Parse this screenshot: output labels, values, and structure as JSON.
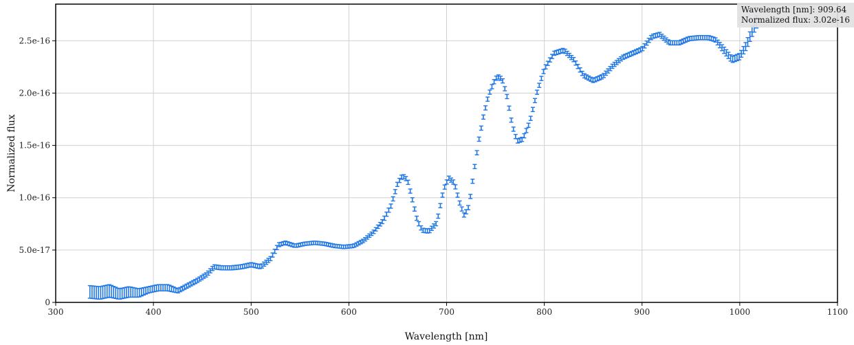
{
  "chart_data": {
    "type": "scatter",
    "xlabel": "Wavelength [nm]",
    "ylabel": "Normalized flux",
    "xlim": [
      300,
      1100
    ],
    "ylim": [
      0,
      2.85e-16
    ],
    "x_ticks": [
      300,
      400,
      500,
      600,
      700,
      800,
      900,
      1000,
      1100
    ],
    "x_tick_labels": [
      "300",
      "400",
      "500",
      "600",
      "700",
      "800",
      "900",
      "1000",
      "1100"
    ],
    "y_ticks": [
      0,
      5e-17,
      1e-16,
      1.5e-16,
      2e-16,
      2.5e-16
    ],
    "y_tick_labels": [
      "0",
      "5.0e-17",
      "1.0e-16",
      "1.5e-16",
      "2.0e-16",
      "2.5e-16"
    ],
    "grid": true,
    "marker_color": "#1f77e6",
    "series": [
      {
        "error_bars": true,
        "points": [
          [
            335,
            1e-17,
            6e-18
          ],
          [
            345,
            9e-18,
            6e-18
          ],
          [
            355,
            1.1e-17,
            6e-18
          ],
          [
            365,
            8e-18,
            5e-18
          ],
          [
            375,
            1e-17,
            5e-18
          ],
          [
            385,
            9e-18,
            4e-18
          ],
          [
            395,
            1.2e-17,
            3e-18
          ],
          [
            405,
            1.4e-17,
            3e-18
          ],
          [
            415,
            1.4e-17,
            3e-18
          ],
          [
            425,
            1.1e-17,
            2e-18
          ],
          [
            435,
            1.6e-17,
            2e-18
          ],
          [
            445,
            2.1e-17,
            2e-18
          ],
          [
            455,
            2.7e-17,
            2e-18
          ],
          [
            462,
            3.4e-17,
            2e-18
          ],
          [
            470,
            3.3e-17,
            2e-18
          ],
          [
            480,
            3.3e-17,
            2e-18
          ],
          [
            490,
            3.4e-17,
            2e-18
          ],
          [
            500,
            3.6e-17,
            2e-18
          ],
          [
            510,
            3.4e-17,
            2e-18
          ],
          [
            520,
            4.2e-17,
            2e-18
          ],
          [
            528,
            5.5e-17,
            2e-18
          ],
          [
            535,
            5.7e-17,
            1e-18
          ],
          [
            545,
            5.4e-17,
            1e-18
          ],
          [
            555,
            5.6e-17,
            1e-18
          ],
          [
            565,
            5.7e-17,
            1e-18
          ],
          [
            575,
            5.6e-17,
            1e-18
          ],
          [
            585,
            5.4e-17,
            1e-18
          ],
          [
            595,
            5.3e-17,
            1e-18
          ],
          [
            605,
            5.4e-17,
            1e-18
          ],
          [
            615,
            5.9e-17,
            1e-18
          ],
          [
            625,
            6.7e-17,
            1e-18
          ],
          [
            635,
            7.8e-17,
            2e-18
          ],
          [
            643,
            9.2e-17,
            2e-18
          ],
          [
            650,
            1.14e-16,
            2e-18
          ],
          [
            655,
            1.21e-16,
            2e-18
          ],
          [
            660,
            1.17e-16,
            2e-18
          ],
          [
            665,
            9.8e-17,
            2e-18
          ],
          [
            670,
            7.8e-17,
            2e-18
          ],
          [
            675,
            6.9e-17,
            2e-18
          ],
          [
            682,
            6.8e-17,
            2e-18
          ],
          [
            690,
            7.6e-17,
            2e-18
          ],
          [
            697,
            1.08e-16,
            2e-18
          ],
          [
            702,
            1.19e-16,
            2e-18
          ],
          [
            708,
            1.14e-16,
            2e-18
          ],
          [
            713,
            9.6e-17,
            2e-18
          ],
          [
            718,
            8.3e-17,
            2e-18
          ],
          [
            723,
            9.2e-17,
            2e-18
          ],
          [
            728,
            1.25e-16,
            2e-18
          ],
          [
            733,
            1.55e-16,
            2e-18
          ],
          [
            738,
            1.79e-16,
            2e-18
          ],
          [
            743,
            1.98e-16,
            2e-18
          ],
          [
            748,
            2.1e-16,
            2e-18
          ],
          [
            752,
            2.16e-16,
            2e-18
          ],
          [
            757,
            2.13e-16,
            2e-18
          ],
          [
            762,
            1.96e-16,
            2e-18
          ],
          [
            767,
            1.7e-16,
            2e-18
          ],
          [
            772,
            1.54e-16,
            2e-18
          ],
          [
            778,
            1.56e-16,
            2e-18
          ],
          [
            785,
            1.72e-16,
            2e-18
          ],
          [
            792,
            1.99e-16,
            2e-18
          ],
          [
            800,
            2.23e-16,
            2e-18
          ],
          [
            810,
            2.38e-16,
            2e-18
          ],
          [
            820,
            2.41e-16,
            2e-18
          ],
          [
            830,
            2.32e-16,
            2e-18
          ],
          [
            840,
            2.17e-16,
            2e-18
          ],
          [
            850,
            2.12e-16,
            2e-18
          ],
          [
            860,
            2.16e-16,
            2e-18
          ],
          [
            870,
            2.26e-16,
            2e-18
          ],
          [
            880,
            2.34e-16,
            2e-18
          ],
          [
            890,
            2.38e-16,
            2e-18
          ],
          [
            900,
            2.42e-16,
            2e-18
          ],
          [
            910,
            2.54e-16,
            2e-18
          ],
          [
            918,
            2.56e-16,
            2e-18
          ],
          [
            928,
            2.48e-16,
            2e-18
          ],
          [
            938,
            2.48e-16,
            2e-18
          ],
          [
            948,
            2.52e-16,
            2e-18
          ],
          [
            958,
            2.53e-16,
            2e-18
          ],
          [
            968,
            2.53e-16,
            2e-18
          ],
          [
            975,
            2.51e-16,
            2e-18
          ],
          [
            983,
            2.42e-16,
            3e-18
          ],
          [
            992,
            2.32e-16,
            3e-18
          ],
          [
            1000,
            2.35e-16,
            3e-18
          ],
          [
            1007,
            2.46e-16,
            4e-18
          ],
          [
            1013,
            2.6e-16,
            5e-18
          ],
          [
            1018,
            2.7e-16,
            6e-18
          ]
        ]
      }
    ]
  },
  "tooltip": {
    "line1": "Wavelength [nm]: 909.64",
    "line2": "Normalized flux: 3.02e-16"
  }
}
